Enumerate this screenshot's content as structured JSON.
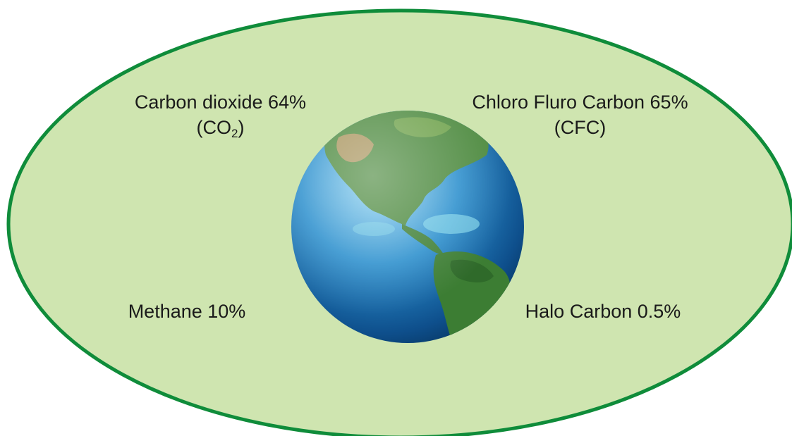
{
  "colors": {
    "ellipse_fill": "#cfe5b0",
    "ellipse_stroke": "#0f8c3a",
    "ocean": "#1f7fc0",
    "land": "#3f8a3a"
  },
  "labels": {
    "co2": {
      "name": "Carbon dioxide 64%",
      "formula_open": "(CO",
      "formula_sub": "2",
      "formula_close": ")"
    },
    "cfc": {
      "name": "Chloro Fluro Carbon 65%",
      "formula": "(CFC)"
    },
    "methane": {
      "name": "Methane 10%"
    },
    "halo": {
      "name": "Halo Carbon 0.5%"
    }
  },
  "center_icon": "earth-globe-icon"
}
